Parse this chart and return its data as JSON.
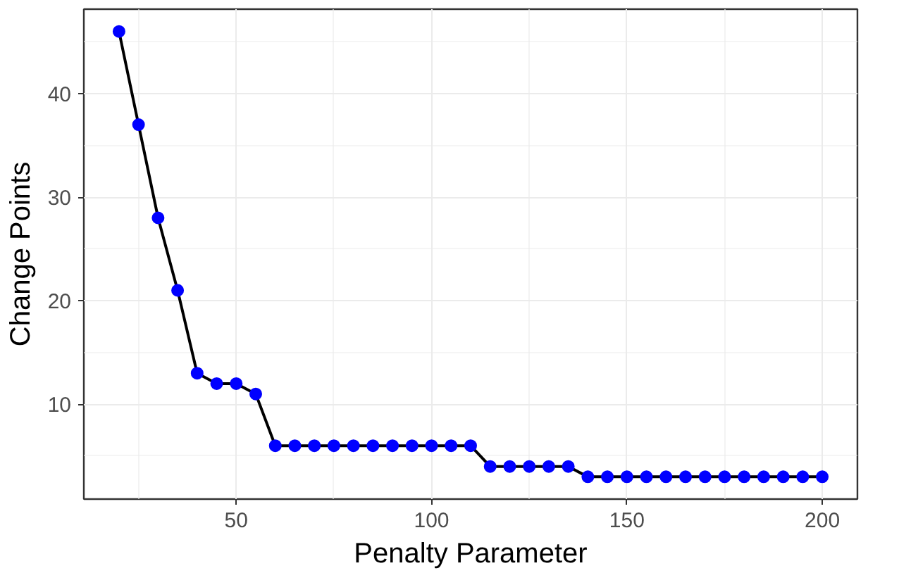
{
  "chart_data": {
    "type": "line",
    "xlabel": "Penalty Parameter",
    "ylabel": "Change Points",
    "x": [
      20,
      25,
      30,
      35,
      40,
      45,
      50,
      55,
      60,
      65,
      70,
      75,
      80,
      85,
      90,
      95,
      100,
      105,
      110,
      115,
      120,
      125,
      130,
      135,
      140,
      145,
      150,
      155,
      160,
      165,
      170,
      175,
      180,
      185,
      190,
      195,
      200
    ],
    "series": [
      {
        "color": "#000000",
        "colors": [
          "#0000ff",
          "#0000ff",
          "#0000ff",
          "#0000ff",
          "#0000ff",
          "#0000ff",
          "#0000ff",
          "#0000ff",
          "#0000ff",
          "#0000ff",
          "#0000ff",
          "#0000ff",
          "#0000ff",
          "#0000ff",
          "#0000ff",
          "#0000ff",
          "#0000ff",
          "#0000ff",
          "#0000ff",
          "#0000ff",
          "#0000ff",
          "#0000ff",
          "#0000ff",
          "#0000ff",
          "#0000ff",
          "#0000ff",
          "#0000ff",
          "#0000ff",
          "#0000ff",
          "#0000ff",
          "#0000ff",
          "#0000ff",
          "#0000ff",
          "#0000ff",
          "#0000ff",
          "#0000ff",
          "#0000ff"
        ],
        "values": [
          46,
          37,
          28,
          21,
          13,
          12,
          12,
          11,
          6,
          6,
          6,
          6,
          6,
          6,
          6,
          6,
          6,
          6,
          6,
          4,
          4,
          4,
          4,
          4,
          3,
          3,
          3,
          3,
          3,
          3,
          3,
          3,
          3,
          3,
          3,
          3,
          3
        ]
      }
    ],
    "xlim": [
      11,
      209
    ],
    "ylim": [
      0.85,
      48.15
    ],
    "xticks": [
      50,
      100,
      150,
      200
    ],
    "yticks": [
      10,
      20,
      30,
      40
    ],
    "grid": true,
    "marker": "circle",
    "line_style": "solid"
  }
}
